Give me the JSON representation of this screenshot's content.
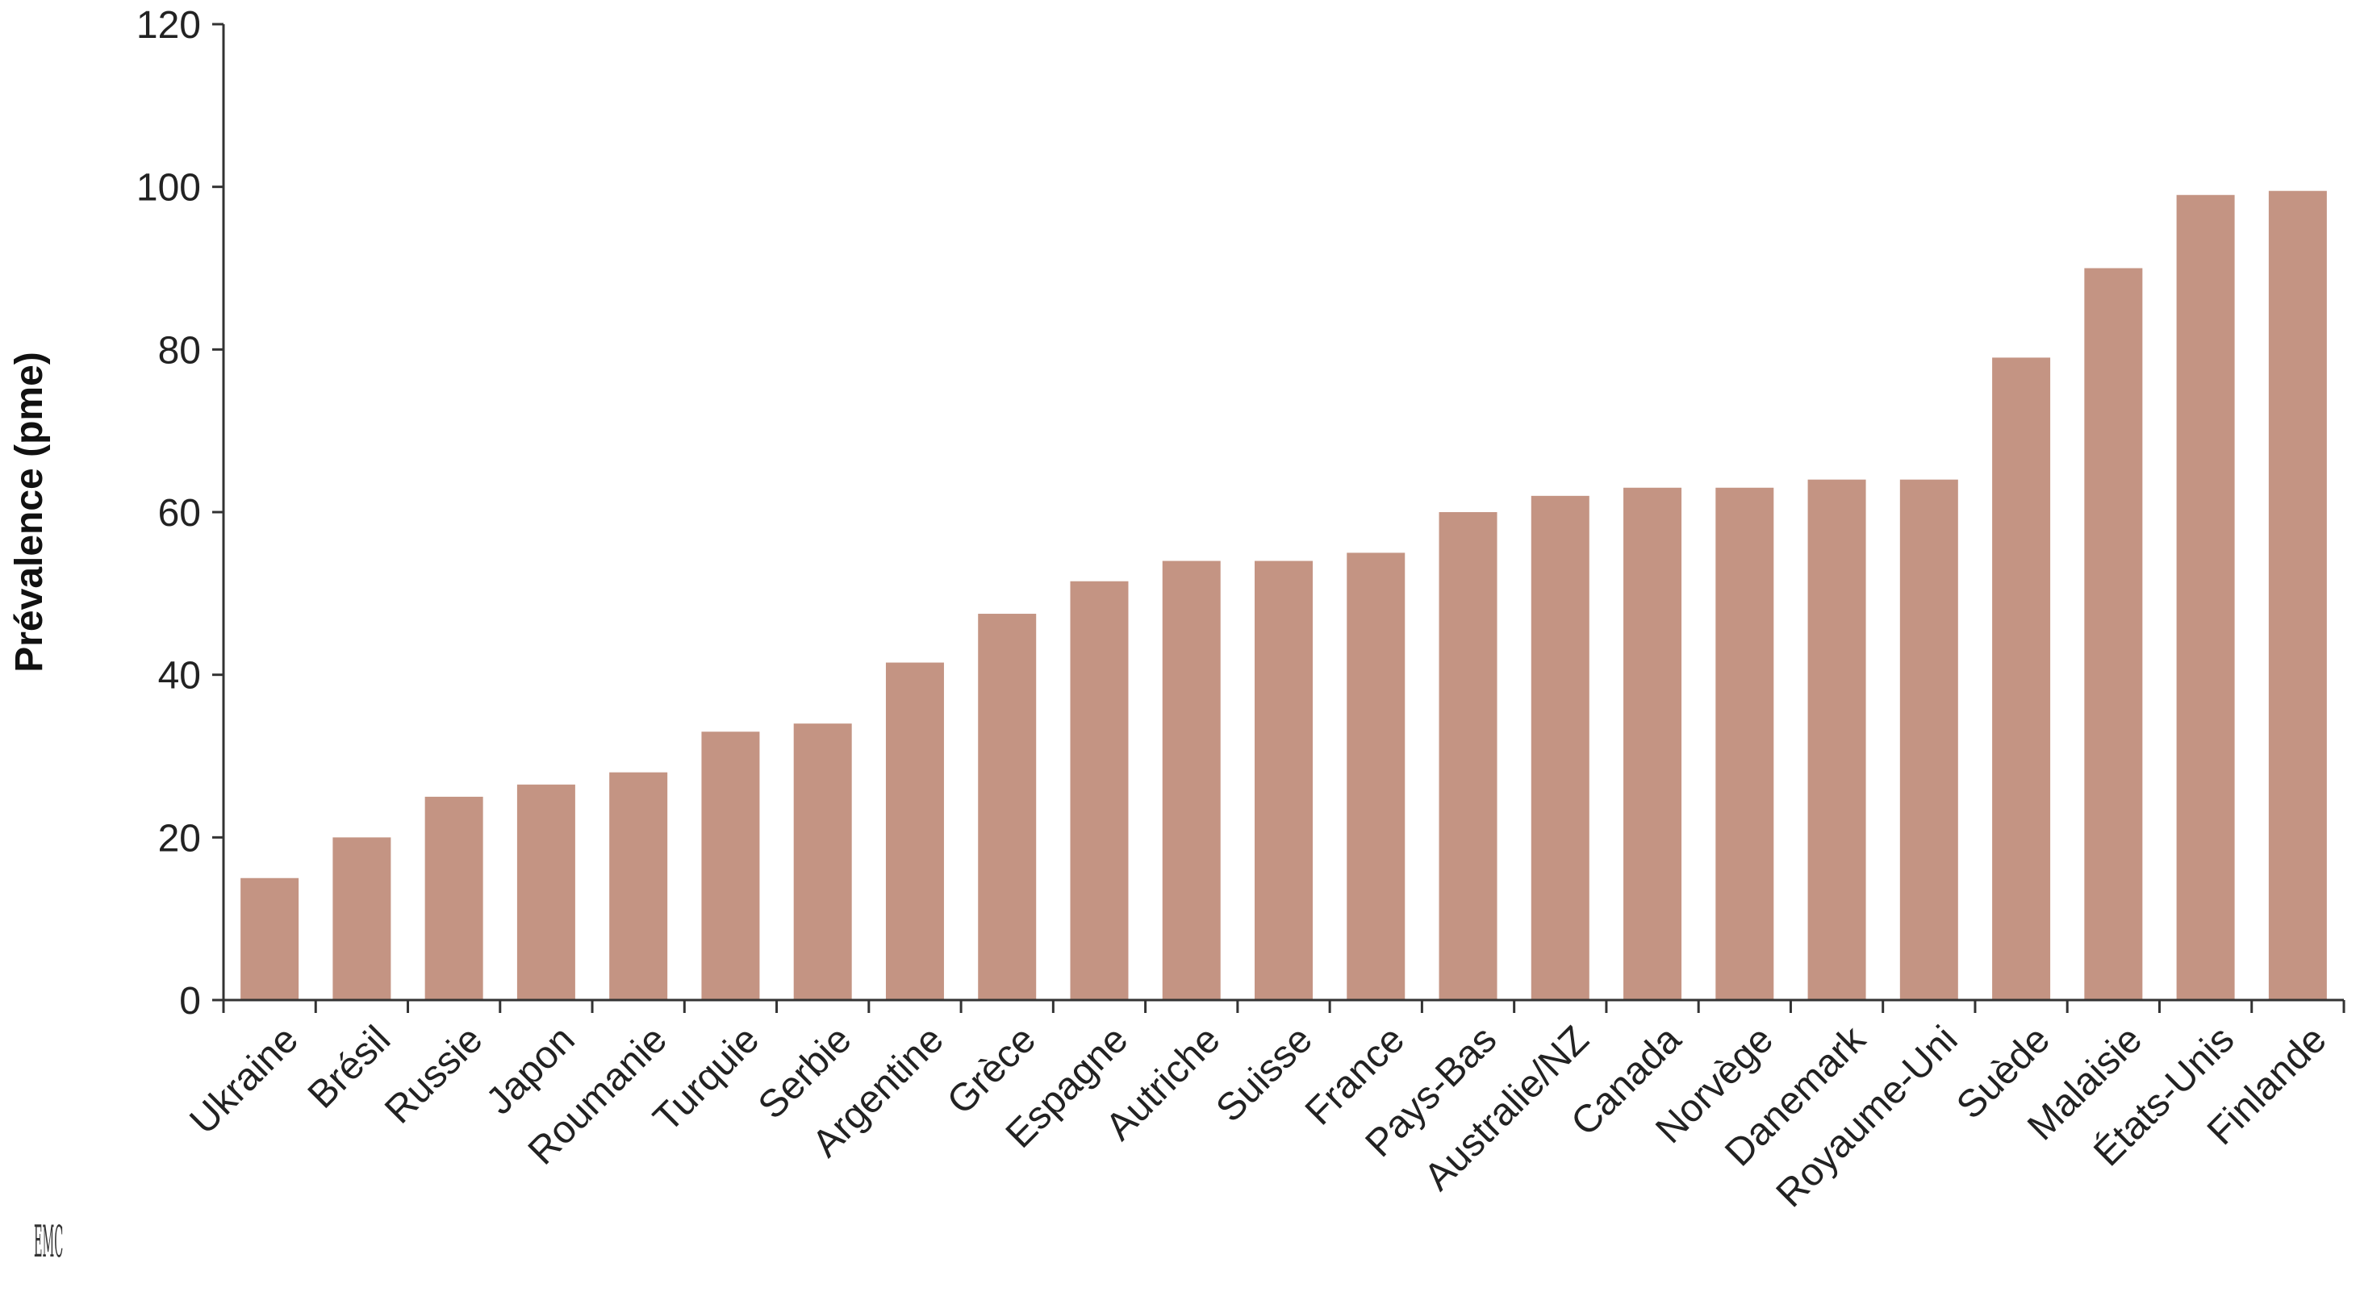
{
  "chart_data": {
    "type": "bar",
    "ylabel": "Prévalence (pme)",
    "xlabel": "",
    "ylim": [
      0,
      120
    ],
    "y_ticks": [
      "0",
      "20",
      "40",
      "60",
      "80",
      "100",
      "120"
    ],
    "bar_color": "#c49483",
    "grid": false,
    "categories": [
      "Ukraine",
      "Brésil",
      "Russie",
      "Japon",
      "Roumanie",
      "Turquie",
      "Serbie",
      "Argentine",
      "Grèce",
      "Espagne",
      "Autriche",
      "Suisse",
      "France",
      "Pays-Bas",
      "Australie/NZ",
      "Canada",
      "Norvège",
      "Danemark",
      "Royaume-Uni",
      "Suède",
      "Malaisie",
      "États-Unis",
      "Finlande"
    ],
    "values": [
      15,
      20,
      25,
      26.5,
      28,
      33,
      34,
      41.5,
      47.5,
      51.5,
      54,
      54,
      55,
      60,
      62,
      63,
      63,
      64,
      64,
      79,
      90,
      99,
      99.5
    ]
  },
  "logo_text": "EMC"
}
